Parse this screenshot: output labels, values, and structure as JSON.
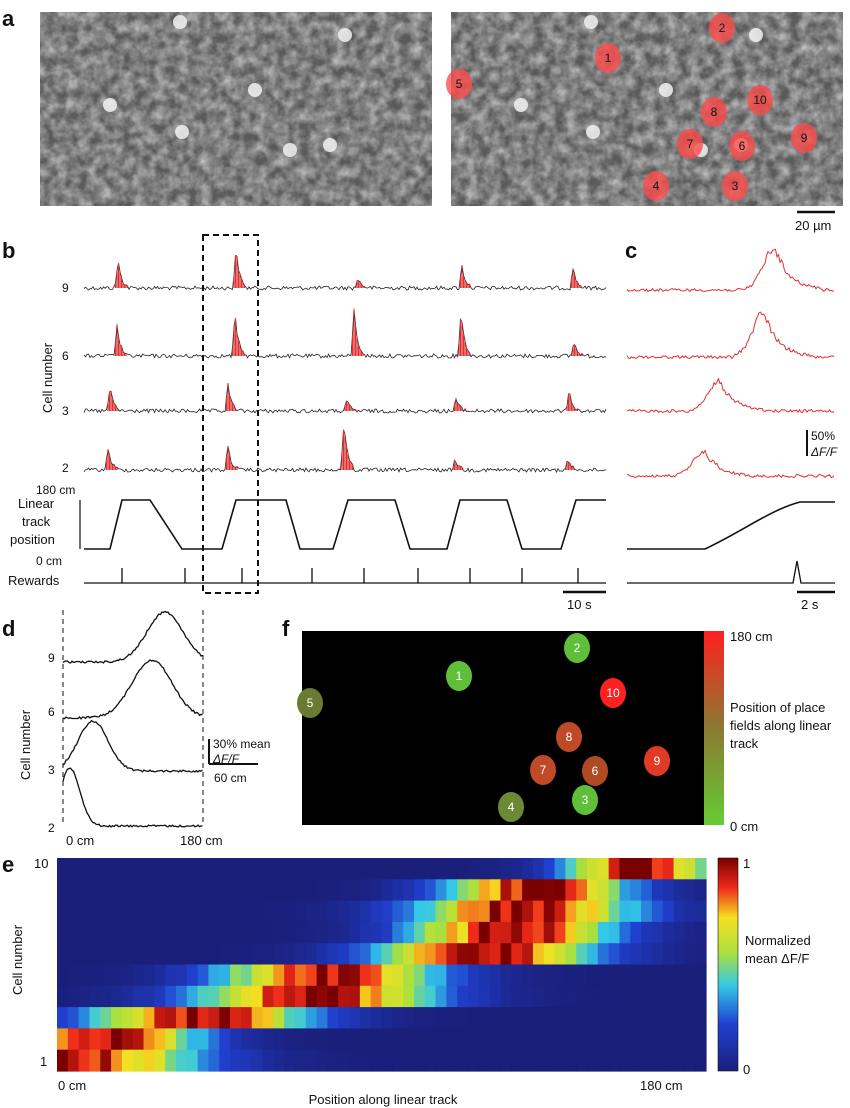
{
  "panels": {
    "a": {
      "label": "a",
      "scale_bar": "20 µm",
      "rois": [
        {
          "id": "1"
        },
        {
          "id": "2"
        },
        {
          "id": "3"
        },
        {
          "id": "4"
        },
        {
          "id": "5"
        },
        {
          "id": "6"
        },
        {
          "id": "7"
        },
        {
          "id": "8"
        },
        {
          "id": "9"
        },
        {
          "id": "10"
        }
      ]
    },
    "b": {
      "label": "b",
      "cell_numbers": [
        "9",
        "6",
        "3",
        "2"
      ],
      "y_axis_label": "Cell number",
      "track_label_lines": [
        "Linear",
        "track",
        "position"
      ],
      "track_top": "180 cm",
      "track_bottom": "0 cm",
      "rewards_label": "Rewards",
      "scale_bar": "10 s"
    },
    "c": {
      "label": "c",
      "scale_pct": "50%",
      "scale_unit": "ΔF/F",
      "scale_bar": "2 s"
    },
    "d": {
      "label": "d",
      "cell_numbers": [
        "9",
        "6",
        "3",
        "2"
      ],
      "y_axis_label": "Cell number",
      "scale_pct": "30% mean",
      "scale_unit": "ΔF/F",
      "scale_x": "60 cm",
      "x_start": "0 cm",
      "x_end": "180 cm"
    },
    "f": {
      "label": "f",
      "colorbar_top": "180 cm",
      "colorbar_bottom": "0 cm",
      "colorbar_label_lines": [
        "Position of place",
        "fields along linear",
        "track"
      ],
      "rois": [
        {
          "id": "1"
        },
        {
          "id": "2"
        },
        {
          "id": "3"
        },
        {
          "id": "4"
        },
        {
          "id": "5"
        },
        {
          "id": "6"
        },
        {
          "id": "7"
        },
        {
          "id": "8"
        },
        {
          "id": "9"
        },
        {
          "id": "10"
        }
      ]
    },
    "e": {
      "label": "e",
      "y_axis_label": "Cell number",
      "y_top": "10",
      "y_bottom": "1",
      "x_axis_label": "Position along linear track",
      "x_start": "0 cm",
      "x_end": "180 cm",
      "colorbar_top": "1",
      "colorbar_bottom": "0",
      "colorbar_label_lines": [
        "Normalized",
        "mean ΔF/F"
      ],
      "colors": {
        "low": "#2a2f8f",
        "mid": "#9fe03a",
        "high": "#8b0000"
      }
    }
  }
}
